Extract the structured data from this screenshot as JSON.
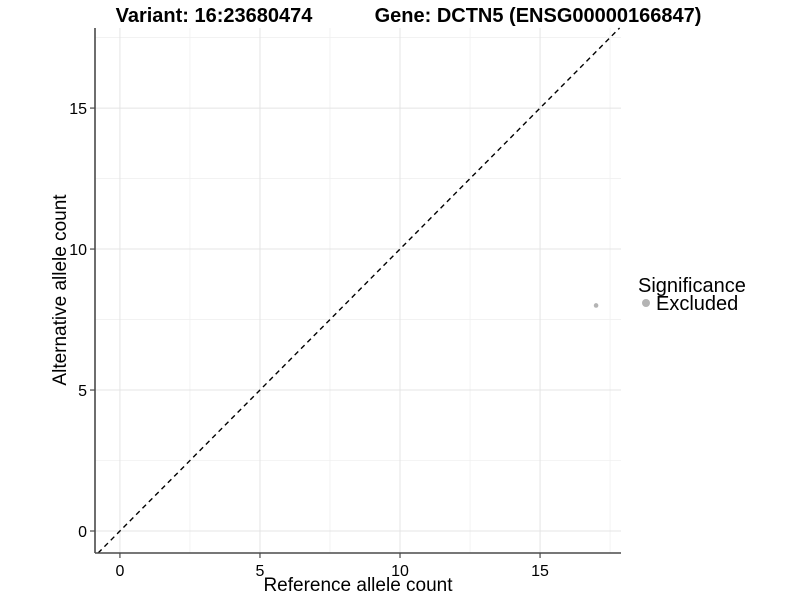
{
  "chart_data": {
    "type": "scatter",
    "titles": [
      "Variant: 16:23680474",
      "Gene: DCTN5 (ENSG00000166847)"
    ],
    "xlabel": "Reference allele count",
    "ylabel": "Alternative allele count",
    "xlim": [
      -0.89,
      17.89
    ],
    "ylim": [
      -0.78,
      17.84
    ],
    "x_major_ticks": [
      0,
      5,
      10,
      15
    ],
    "y_major_ticks": [
      0,
      5,
      10,
      15
    ],
    "x_minor_ticks": [
      2.5,
      7.5,
      12.5,
      17.5
    ],
    "y_minor_ticks": [
      2.5,
      7.5,
      12.5,
      17.5
    ],
    "grid": "major+minor",
    "identity_line": {
      "slope": 1,
      "intercept": 0,
      "style": "dashed"
    },
    "series": [
      {
        "name": "Excluded",
        "color": "#b4b4b4",
        "points": [
          [
            17,
            8
          ]
        ]
      }
    ],
    "legend": {
      "position": "right",
      "title": "Significance",
      "items": [
        {
          "label": "Excluded",
          "color": "#b4b4b4"
        }
      ]
    }
  },
  "colors": {
    "background": "#ffffff",
    "axis_line": "#4a4a4a",
    "tick_mark": "#4a4a4a",
    "grid_major": "#e4e4e4",
    "grid_minor": "#f0f0f0",
    "identity_line": "#000000",
    "point": "#b4b4b4",
    "text": "#000000"
  }
}
